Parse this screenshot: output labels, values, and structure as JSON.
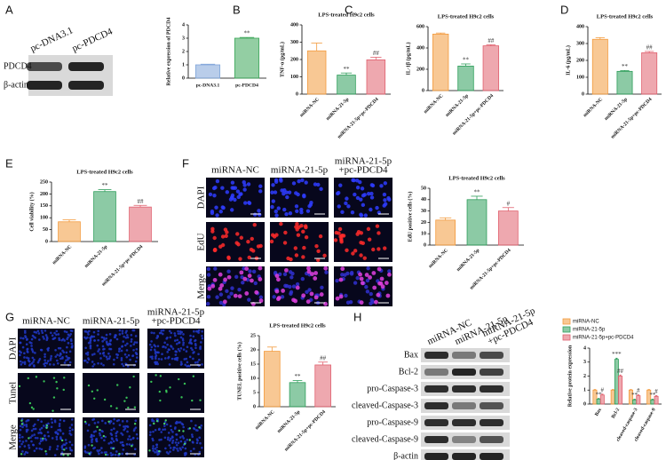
{
  "panel_labels": [
    "A",
    "B",
    "C",
    "D",
    "E",
    "F",
    "G",
    "H"
  ],
  "blot_a": {
    "columns": [
      "pc-DNA3.1",
      "pc-PDCD4"
    ],
    "rows": [
      "PDCD4",
      "β-actin"
    ]
  },
  "images_f": {
    "columns": [
      [
        "miRNA-NC"
      ],
      [
        "miRNA-21-5p"
      ],
      [
        "miRNA-21-5p",
        "+pc-PDCD4"
      ]
    ],
    "rows": [
      "DAPI",
      "EdU",
      "Merge"
    ]
  },
  "images_g": {
    "columns": [
      [
        "miRNA-NC"
      ],
      [
        "miRNA-21-5p"
      ],
      [
        "miRNA-21-5p",
        "+pc-PDCD4"
      ]
    ],
    "rows": [
      "DAPI",
      "Tunel",
      "Merge"
    ]
  },
  "blot_h": {
    "columns": [
      [
        "miRNA-NC"
      ],
      [
        "miRNA-21-5p"
      ],
      [
        "miRNA-21-5p",
        "+pc-PDCD4"
      ]
    ],
    "rows": [
      "Bax",
      "Bcl-2",
      "pro-Caspase-3",
      "cleaved-Caspase-3",
      "pro-Caspase-9",
      "cleaved-Caspase-9",
      "β-actin"
    ]
  },
  "chart_data": [
    {
      "type": "bar",
      "y_label": "Relative expression of PDCD4",
      "categories": [
        "pc-DNA3.1",
        "pc-PDCD4"
      ],
      "values": [
        1.0,
        3.0
      ],
      "errors": [
        0.05,
        0.06
      ],
      "colors": [
        "#7fa4d9",
        "#3aa657"
      ],
      "annotations": [
        null,
        "**"
      ],
      "ylim": [
        0,
        4
      ],
      "yticks": [
        0,
        1,
        2,
        3,
        4
      ]
    },
    {
      "type": "bar",
      "title": "LPS-treated H9c2 cells",
      "y_label": "TNF-α (pg/mL)",
      "categories": [
        "miRNA-NC",
        "miRNA-21-5p",
        "miRNA-21-5p+pc-PDCD4"
      ],
      "values": [
        250,
        110,
        198
      ],
      "errors": [
        45,
        12,
        15
      ],
      "colors": [
        "#f39a3c",
        "#2e9e5b",
        "#e0606e"
      ],
      "annotations": [
        null,
        "**",
        "##"
      ],
      "ylim": [
        0,
        400
      ],
      "yticks": [
        0,
        100,
        200,
        300,
        400
      ]
    },
    {
      "type": "bar",
      "title": "LPS-treated H9c2 cells",
      "y_label": "IL-1β (pg/mL)",
      "categories": [
        "miRNA-NC",
        "miRNA-21-5p",
        "miRNA-21-5p+pc-PDCD4"
      ],
      "values": [
        530,
        230,
        420
      ],
      "errors": [
        10,
        20,
        10
      ],
      "colors": [
        "#f39a3c",
        "#2e9e5b",
        "#e0606e"
      ],
      "annotations": [
        null,
        "**",
        "##"
      ],
      "ylim": [
        0,
        600
      ],
      "yticks": [
        0,
        200,
        400,
        600
      ]
    },
    {
      "type": "bar",
      "title": "LPS-treated H9c2 cells",
      "y_label": "IL-6 (pg/mL)",
      "categories": [
        "miRNA-NC",
        "miRNA-21-5p",
        "miRNA-21-5p+pc-PDCD4"
      ],
      "values": [
        325,
        135,
        245
      ],
      "errors": [
        10,
        5,
        8
      ],
      "colors": [
        "#f39a3c",
        "#2e9e5b",
        "#e0606e"
      ],
      "annotations": [
        null,
        "**",
        "##"
      ],
      "ylim": [
        0,
        400
      ],
      "yticks": [
        0,
        100,
        200,
        300,
        400
      ]
    },
    {
      "type": "bar",
      "title": "LPS-treated H9c2 cells",
      "y_label": "Cell viability (%)",
      "categories": [
        "miRNA-NC",
        "miRNA-21-5p",
        "miRNA-21-5p+pc-PDCD4"
      ],
      "values": [
        83,
        210,
        145
      ],
      "errors": [
        8,
        8,
        7
      ],
      "colors": [
        "#f39a3c",
        "#2e9e5b",
        "#e0606e"
      ],
      "annotations": [
        null,
        "**",
        "##"
      ],
      "ylim": [
        0,
        250
      ],
      "yticks": [
        0,
        50,
        100,
        150,
        200,
        250
      ]
    },
    {
      "type": "bar",
      "title": "LPS-treated H9c2 cells",
      "y_label": "EdU positive cells (%)",
      "categories": [
        "miRNA-NC",
        "miRNA-21-5p",
        "miRNA-21-5p+pc-PDCD4"
      ],
      "values": [
        22,
        40,
        30
      ],
      "errors": [
        2,
        3,
        3
      ],
      "colors": [
        "#f39a3c",
        "#2e9e5b",
        "#e0606e"
      ],
      "annotations": [
        null,
        "**",
        "#"
      ],
      "ylim": [
        0,
        50
      ],
      "yticks": [
        0,
        10,
        20,
        30,
        40,
        50
      ]
    },
    {
      "type": "bar",
      "title": "LPS-treated H9c2 cells",
      "y_label": "TUNEL positive cells (%)",
      "categories": [
        "miRNA-NC",
        "miRNA-21-5p",
        "miRNA-21-5p+pc-PDCD4"
      ],
      "values": [
        19.5,
        8.5,
        14.7
      ],
      "errors": [
        1.5,
        0.7,
        1.0
      ],
      "colors": [
        "#f39a3c",
        "#2e9e5b",
        "#e0606e"
      ],
      "annotations": [
        null,
        "**",
        "##"
      ],
      "ylim": [
        0,
        25
      ],
      "yticks": [
        0,
        5,
        10,
        15,
        20,
        25
      ]
    },
    {
      "type": "bar",
      "y_label": "Relative protein expression",
      "categories": [
        "Bax",
        "Bcl-2",
        "cleaved-caspase-3",
        "cleaved-caspase-9"
      ],
      "series": [
        {
          "name": "miRNA-NC",
          "color": "#f39a3c",
          "values": [
            1.0,
            1.0,
            1.0,
            1.0
          ],
          "errors": [
            0.04,
            0.04,
            0.04,
            0.04
          ]
        },
        {
          "name": "miRNA-21-5p",
          "color": "#2e9e5b",
          "values": [
            0.35,
            3.2,
            0.3,
            0.3
          ],
          "errors": [
            0.05,
            0.08,
            0.05,
            0.05
          ],
          "annotations": [
            "**",
            "***",
            "**",
            "**"
          ]
        },
        {
          "name": "miRNA-21-5p+pc-PDCD4",
          "color": "#e0606e",
          "values": [
            0.65,
            2.0,
            0.6,
            0.55
          ],
          "errors": [
            0.06,
            0.08,
            0.06,
            0.06
          ],
          "annotations": [
            "#",
            "##",
            "#",
            "#"
          ]
        }
      ],
      "ylim": [
        0,
        4
      ],
      "yticks": [
        0,
        1,
        2,
        3,
        4
      ]
    }
  ]
}
